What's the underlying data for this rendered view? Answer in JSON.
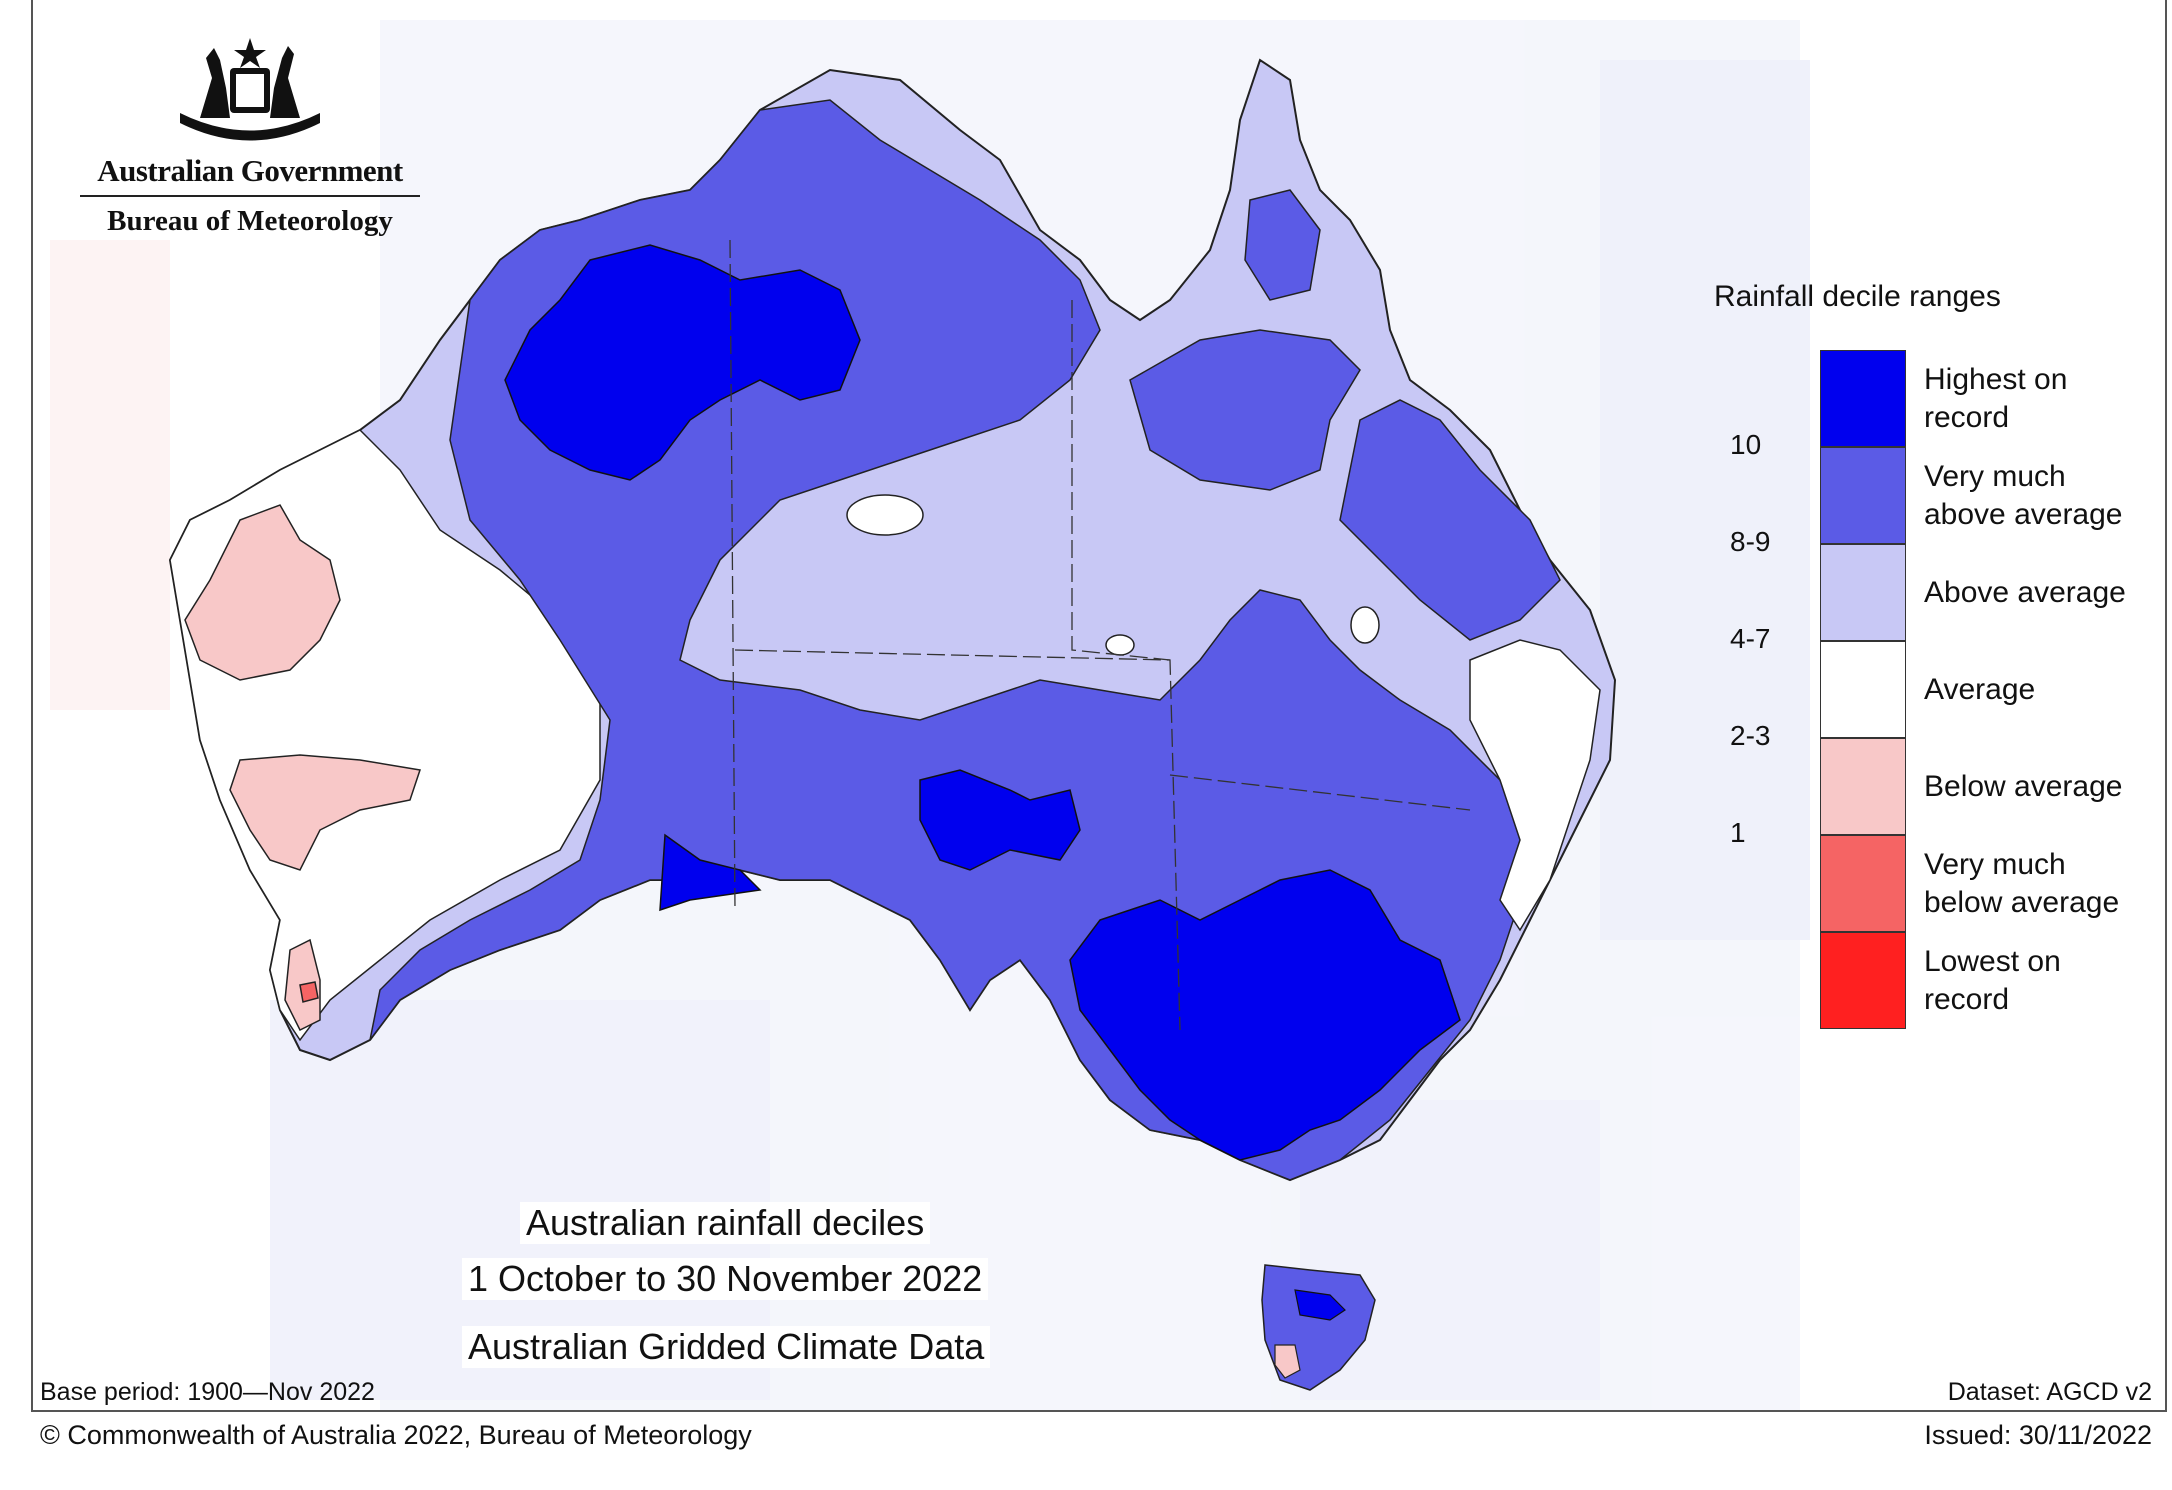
{
  "branding": {
    "government": "Australian Government",
    "agency": "Bureau of Meteorology",
    "crest_icon": "commonwealth-coat-of-arms"
  },
  "title": {
    "line1": "Australian rainfall deciles",
    "line2": "1 October to 30 November 2022",
    "line3": "Australian Gridded Climate Data"
  },
  "legend": {
    "title": "Rainfall decile ranges",
    "categories": [
      {
        "label": "Highest on\nrecord",
        "decile": "",
        "color": "#0000ee"
      },
      {
        "label": "Very much\nabove average",
        "decile": "10",
        "color": "#5b5be6"
      },
      {
        "label": "Above average",
        "decile": "8-9",
        "color": "#c8c8f5"
      },
      {
        "label": "Average",
        "decile": "4-7",
        "color": "#ffffff"
      },
      {
        "label": "Below average",
        "decile": "2-3",
        "color": "#f8c8c8"
      },
      {
        "label": "Very much\nbelow average",
        "decile": "1",
        "color": "#f56464"
      },
      {
        "label": "Lowest on\nrecord",
        "decile": "",
        "color": "#ff2020"
      }
    ]
  },
  "footer": {
    "base_period": "Base period: 1900—Nov 2022",
    "dataset": "Dataset: AGCD v2",
    "copyright": "© Commonwealth of Australia 2022, Bureau of Meteorology",
    "issued": "Issued: 30/11/2022"
  }
}
